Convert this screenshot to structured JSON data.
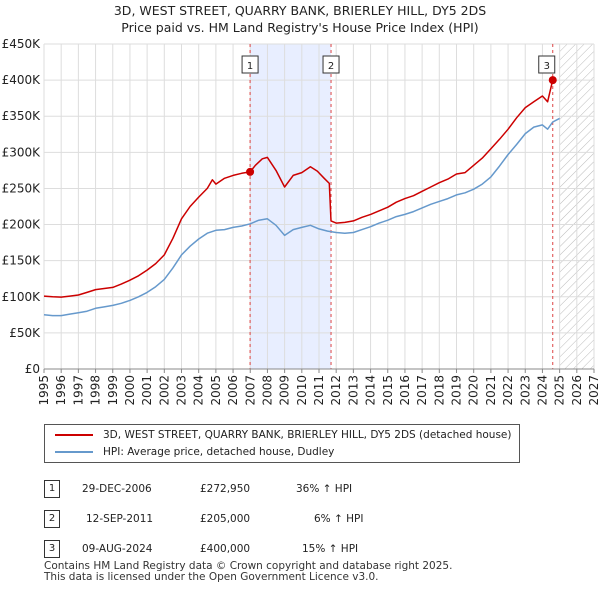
{
  "title_line1": "3D, WEST STREET, QUARRY BANK, BRIERLEY HILL, DY5 2DS",
  "title_line2": "Price paid vs. HM Land Registry's House Price Index (HPI)",
  "legend": {
    "series1": "3D, WEST STREET, QUARRY BANK, BRIERLEY HILL, DY5 2DS (detached house)",
    "series2": "HPI: Average price, detached house, Dudley"
  },
  "colors": {
    "price": "#cc0000",
    "hpi": "#6699cc",
    "shade": "#e8eeff",
    "marker_line": "#dd4444",
    "grid": "#dddddd"
  },
  "sales": [
    {
      "n": "1",
      "date": "29-DEC-2006",
      "price": "£272,950",
      "hpi": "36% ↑ HPI"
    },
    {
      "n": "2",
      "date": "12-SEP-2011",
      "price": "£205,000",
      "hpi": "6% ↑ HPI"
    },
    {
      "n": "3",
      "date": "09-AUG-2024",
      "price": "£400,000",
      "hpi": "15% ↑ HPI"
    }
  ],
  "footer": {
    "line1": "Contains HM Land Registry data © Crown copyright and database right 2025.",
    "line2": "This data is licensed under the Open Government Licence v3.0."
  },
  "chart_data": {
    "type": "line",
    "title": "3D, WEST STREET, QUARRY BANK, BRIERLEY HILL, DY5 2DS",
    "subtitle": "Price paid vs. HM Land Registry's House Price Index (HPI)",
    "xlabel": "",
    "ylabel": "",
    "xlim": [
      1995,
      2027
    ],
    "ylim": [
      0,
      450000
    ],
    "x_ticks": [
      1995,
      1996,
      1997,
      1998,
      1999,
      2000,
      2001,
      2002,
      2003,
      2004,
      2005,
      2006,
      2007,
      2008,
      2009,
      2010,
      2011,
      2012,
      2013,
      2014,
      2015,
      2016,
      2017,
      2018,
      2019,
      2020,
      2021,
      2022,
      2023,
      2024,
      2025,
      2026,
      2027
    ],
    "y_ticks": [
      {
        "value": 0,
        "label": "£0"
      },
      {
        "value": 50000,
        "label": "£50K"
      },
      {
        "value": 100000,
        "label": "£100K"
      },
      {
        "value": 150000,
        "label": "£150K"
      },
      {
        "value": 200000,
        "label": "£200K"
      },
      {
        "value": 250000,
        "label": "£250K"
      },
      {
        "value": 300000,
        "label": "£300K"
      },
      {
        "value": 350000,
        "label": "£350K"
      },
      {
        "value": 400000,
        "label": "£400K"
      },
      {
        "value": 450000,
        "label": "£450K"
      }
    ],
    "grid": true,
    "shaded_period": [
      2006.99,
      2011.7
    ],
    "forecast_hatch_from": 2025.0,
    "sale_markers": [
      {
        "label": "1",
        "x": 2006.99,
        "y": 272950
      },
      {
        "label": "2",
        "x": 2011.7,
        "y": 205000
      },
      {
        "label": "3",
        "x": 2024.6,
        "y": 400000
      }
    ],
    "series": [
      {
        "name": "3D, WEST STREET, QUARRY BANK, BRIERLEY HILL, DY5 2DS (detached house)",
        "color": "#cc0000",
        "points": [
          [
            1995.0,
            101000
          ],
          [
            1995.5,
            100000
          ],
          [
            1996.0,
            99500
          ],
          [
            1996.5,
            101000
          ],
          [
            1997.0,
            102500
          ],
          [
            1997.5,
            106000
          ],
          [
            1998.0,
            110000
          ],
          [
            1998.5,
            111500
          ],
          [
            1999.0,
            113000
          ],
          [
            1999.5,
            117500
          ],
          [
            2000.0,
            123000
          ],
          [
            2000.5,
            129000
          ],
          [
            2001.0,
            137000
          ],
          [
            2001.5,
            146000
          ],
          [
            2002.0,
            158000
          ],
          [
            2002.5,
            181000
          ],
          [
            2003.0,
            208000
          ],
          [
            2003.5,
            225000
          ],
          [
            2004.0,
            238000
          ],
          [
            2004.5,
            250000
          ],
          [
            2004.8,
            262000
          ],
          [
            2005.0,
            256000
          ],
          [
            2005.5,
            264000
          ],
          [
            2006.0,
            268000
          ],
          [
            2006.5,
            271000
          ],
          [
            2006.99,
            272950
          ],
          [
            2007.3,
            282000
          ],
          [
            2007.7,
            291000
          ],
          [
            2008.0,
            293000
          ],
          [
            2008.5,
            275000
          ],
          [
            2009.0,
            252000
          ],
          [
            2009.5,
            268000
          ],
          [
            2010.0,
            272000
          ],
          [
            2010.5,
            280000
          ],
          [
            2010.9,
            274000
          ],
          [
            2011.3,
            264000
          ],
          [
            2011.6,
            257000
          ],
          [
            2011.7,
            205000
          ],
          [
            2012.0,
            202000
          ],
          [
            2012.5,
            203000
          ],
          [
            2013.0,
            205000
          ],
          [
            2013.5,
            210000
          ],
          [
            2014.0,
            214000
          ],
          [
            2014.5,
            219000
          ],
          [
            2015.0,
            224000
          ],
          [
            2015.5,
            231000
          ],
          [
            2016.0,
            236000
          ],
          [
            2016.5,
            240000
          ],
          [
            2017.0,
            246000
          ],
          [
            2017.5,
            252000
          ],
          [
            2018.0,
            258000
          ],
          [
            2018.5,
            263000
          ],
          [
            2019.0,
            270000
          ],
          [
            2019.5,
            272000
          ],
          [
            2020.0,
            282000
          ],
          [
            2020.5,
            292000
          ],
          [
            2021.0,
            305000
          ],
          [
            2021.5,
            318000
          ],
          [
            2022.0,
            332000
          ],
          [
            2022.5,
            348000
          ],
          [
            2023.0,
            362000
          ],
          [
            2023.5,
            370000
          ],
          [
            2024.0,
            378000
          ],
          [
            2024.3,
            370000
          ],
          [
            2024.6,
            400000
          ]
        ]
      },
      {
        "name": "HPI: Average price, detached house, Dudley",
        "color": "#6699cc",
        "points": [
          [
            1995.0,
            75000
          ],
          [
            1995.5,
            74000
          ],
          [
            1996.0,
            74000
          ],
          [
            1996.5,
            76000
          ],
          [
            1997.0,
            78000
          ],
          [
            1997.5,
            80000
          ],
          [
            1998.0,
            84000
          ],
          [
            1998.5,
            86000
          ],
          [
            1999.0,
            88000
          ],
          [
            1999.5,
            91000
          ],
          [
            2000.0,
            95000
          ],
          [
            2000.5,
            100000
          ],
          [
            2001.0,
            106000
          ],
          [
            2001.5,
            114000
          ],
          [
            2002.0,
            124000
          ],
          [
            2002.5,
            140000
          ],
          [
            2003.0,
            158000
          ],
          [
            2003.5,
            170000
          ],
          [
            2004.0,
            180000
          ],
          [
            2004.5,
            188000
          ],
          [
            2005.0,
            192000
          ],
          [
            2005.5,
            193000
          ],
          [
            2006.0,
            196000
          ],
          [
            2006.5,
            198000
          ],
          [
            2007.0,
            201000
          ],
          [
            2007.5,
            206000
          ],
          [
            2008.0,
            208000
          ],
          [
            2008.5,
            199000
          ],
          [
            2009.0,
            185000
          ],
          [
            2009.5,
            193000
          ],
          [
            2010.0,
            196000
          ],
          [
            2010.5,
            199000
          ],
          [
            2011.0,
            194000
          ],
          [
            2011.5,
            191000
          ],
          [
            2012.0,
            189000
          ],
          [
            2012.5,
            188000
          ],
          [
            2013.0,
            189000
          ],
          [
            2013.5,
            193000
          ],
          [
            2014.0,
            197000
          ],
          [
            2014.5,
            202000
          ],
          [
            2015.0,
            206000
          ],
          [
            2015.5,
            211000
          ],
          [
            2016.0,
            214000
          ],
          [
            2016.5,
            218000
          ],
          [
            2017.0,
            223000
          ],
          [
            2017.5,
            228000
          ],
          [
            2018.0,
            232000
          ],
          [
            2018.5,
            236000
          ],
          [
            2019.0,
            241000
          ],
          [
            2019.5,
            244000
          ],
          [
            2020.0,
            249000
          ],
          [
            2020.5,
            256000
          ],
          [
            2021.0,
            266000
          ],
          [
            2021.5,
            281000
          ],
          [
            2022.0,
            297000
          ],
          [
            2022.5,
            311000
          ],
          [
            2023.0,
            326000
          ],
          [
            2023.5,
            335000
          ],
          [
            2024.0,
            338000
          ],
          [
            2024.3,
            332000
          ],
          [
            2024.6,
            342000
          ],
          [
            2025.0,
            347000
          ]
        ]
      }
    ]
  }
}
